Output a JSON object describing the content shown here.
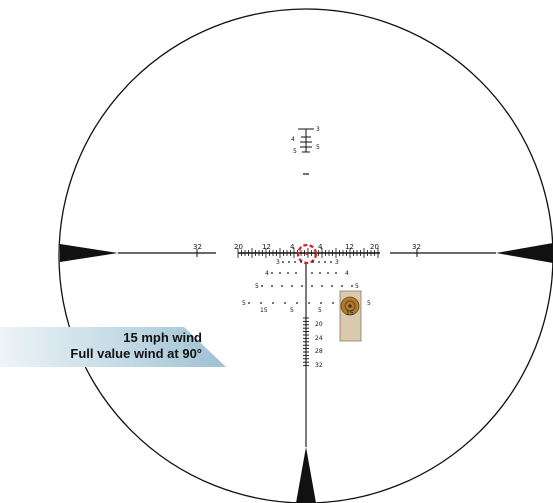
{
  "reticle": {
    "top_ladder": {
      "left_labels": [
        "4",
        "5"
      ],
      "right_labels": [
        "3",
        "5"
      ]
    },
    "horizontal_labels": {
      "outer_left": "32",
      "outer_right": "32",
      "left": [
        "20",
        "12",
        "4"
      ],
      "right": [
        "4",
        "12",
        "20"
      ]
    },
    "windage_row_labels": {
      "row1": [
        "3",
        "3"
      ],
      "row2": [
        "4",
        "4"
      ],
      "row3": [
        "5",
        "5"
      ],
      "row4_left": "5",
      "row4_right": "5",
      "row4_bottom": [
        "15",
        "5",
        "5",
        "15"
      ]
    },
    "drop_labels": [
      "20",
      "24",
      "28",
      "32"
    ],
    "target_marker_label": "15"
  },
  "wind_callout": {
    "line1": "15 mph wind",
    "line2": "Full value wind at 90°"
  },
  "colors": {
    "reticle": "#111111",
    "aim_circle": "#d42020",
    "target": "#b07a2e",
    "target_panel": "#d9c9ad",
    "callout_bg": "#a9c9d8",
    "callout_fade": "#e8f1f5"
  }
}
